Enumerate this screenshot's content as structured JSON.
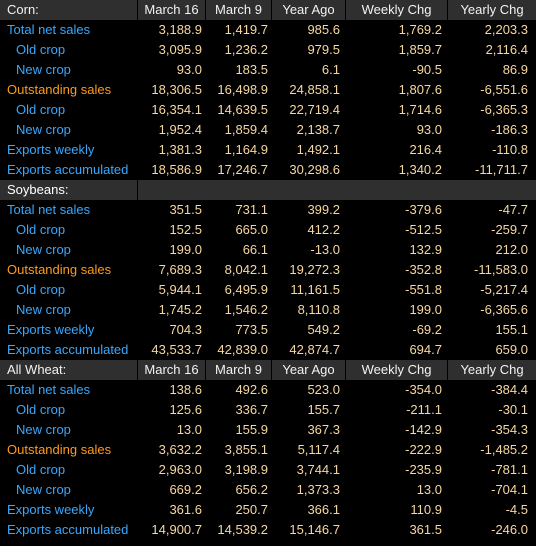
{
  "columns": [
    "March 16",
    "March 9",
    "Year Ago",
    "Weekly Chg",
    "Yearly Chg"
  ],
  "sections": [
    {
      "title": "Corn:",
      "rows": [
        {
          "label": "Total net sales",
          "style": "main",
          "values": [
            "3,188.9",
            "1,419.7",
            "985.6",
            "1,769.2",
            "2,203.3"
          ]
        },
        {
          "label": "Old crop",
          "style": "sub",
          "values": [
            "3,095.9",
            "1,236.2",
            "979.5",
            "1,859.7",
            "2,116.4"
          ]
        },
        {
          "label": "New crop",
          "style": "sub",
          "values": [
            "93.0",
            "183.5",
            "6.1",
            "-90.5",
            "86.9"
          ]
        },
        {
          "label": "Outstanding sales",
          "style": "orange",
          "values": [
            "18,306.5",
            "16,498.9",
            "24,858.1",
            "1,807.6",
            "-6,551.6"
          ]
        },
        {
          "label": "Old crop",
          "style": "sub",
          "values": [
            "16,354.1",
            "14,639.5",
            "22,719.4",
            "1,714.6",
            "-6,365.3"
          ]
        },
        {
          "label": "New crop",
          "style": "sub",
          "values": [
            "1,952.4",
            "1,859.4",
            "2,138.7",
            "93.0",
            "-186.3"
          ]
        },
        {
          "label": "Exports weekly",
          "style": "main",
          "values": [
            "1,381.3",
            "1,164.9",
            "1,492.1",
            "216.4",
            "-110.8"
          ]
        },
        {
          "label": "Exports accumulated",
          "style": "main",
          "values": [
            "18,586.9",
            "17,246.7",
            "30,298.6",
            "1,340.2",
            "-11,711.7"
          ]
        }
      ]
    },
    {
      "title": "Soybeans:",
      "rows": [
        {
          "label": "Total net sales",
          "style": "main",
          "values": [
            "351.5",
            "731.1",
            "399.2",
            "-379.6",
            "-47.7"
          ]
        },
        {
          "label": "Old crop",
          "style": "sub",
          "values": [
            "152.5",
            "665.0",
            "412.2",
            "-512.5",
            "-259.7"
          ]
        },
        {
          "label": "New crop",
          "style": "sub",
          "values": [
            "199.0",
            "66.1",
            "-13.0",
            "132.9",
            "212.0"
          ]
        },
        {
          "label": "Outstanding sales",
          "style": "orange",
          "values": [
            "7,689.3",
            "8,042.1",
            "19,272.3",
            "-352.8",
            "-11,583.0"
          ]
        },
        {
          "label": "Old crop",
          "style": "sub",
          "values": [
            "5,944.1",
            "6,495.9",
            "11,161.5",
            "-551.8",
            "-5,217.4"
          ]
        },
        {
          "label": "New crop",
          "style": "sub",
          "values": [
            "1,745.2",
            "1,546.2",
            "8,110.8",
            "199.0",
            "-6,365.6"
          ]
        },
        {
          "label": "Exports weekly",
          "style": "main",
          "values": [
            "704.3",
            "773.5",
            "549.2",
            "-69.2",
            "155.1"
          ]
        },
        {
          "label": "Exports accumulated",
          "style": "main",
          "values": [
            "43,533.7",
            "42,839.0",
            "42,874.7",
            "694.7",
            "659.0"
          ]
        }
      ]
    },
    {
      "title": "All Wheat:",
      "rows": [
        {
          "label": "Total net sales",
          "style": "main",
          "values": [
            "138.6",
            "492.6",
            "523.0",
            "-354.0",
            "-384.4"
          ]
        },
        {
          "label": "Old crop",
          "style": "sub",
          "values": [
            "125.6",
            "336.7",
            "155.7",
            "-211.1",
            "-30.1"
          ]
        },
        {
          "label": "New crop",
          "style": "sub",
          "values": [
            "13.0",
            "155.9",
            "367.3",
            "-142.9",
            "-354.3"
          ]
        },
        {
          "label": "Outstanding sales",
          "style": "orange",
          "values": [
            "3,632.2",
            "3,855.1",
            "5,117.4",
            "-222.9",
            "-1,485.2"
          ]
        },
        {
          "label": "Old crop",
          "style": "sub",
          "values": [
            "2,963.0",
            "3,198.9",
            "3,744.1",
            "-235.9",
            "-781.1"
          ]
        },
        {
          "label": "New crop",
          "style": "sub",
          "values": [
            "669.2",
            "656.2",
            "1,373.3",
            "13.0",
            "-704.1"
          ]
        },
        {
          "label": "Exports weekly",
          "style": "main",
          "values": [
            "361.6",
            "250.7",
            "366.1",
            "110.9",
            "-4.5"
          ]
        },
        {
          "label": "Exports accumulated",
          "style": "main",
          "values": [
            "14,900.7",
            "14,539.2",
            "15,146.7",
            "361.5",
            "-246.0"
          ]
        }
      ]
    }
  ],
  "colors": {
    "background": "#000000",
    "header_bg": "#2f2f2f",
    "header_text": "#f2f2f2",
    "label_blue": "#38a8ff",
    "label_orange": "#ff9b1a",
    "value_text": "#f7d7a0"
  }
}
